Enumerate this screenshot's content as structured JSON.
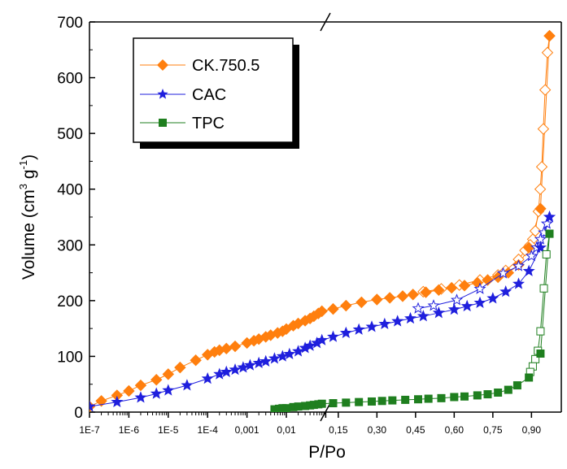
{
  "chart_data": {
    "type": "scatter",
    "title": "",
    "xlabel": "P/Po",
    "ylabel_main": "Volume (cm",
    "ylabel_sup1": "3",
    "ylabel_mid": " g",
    "ylabel_sup2": "-1",
    "ylabel_end": ")",
    "x_scale": "log axis (1E-7 to 0.1) joined by an axis break to a linear axis (0.1 to 1.0)",
    "x_tick_labels_log": [
      "1E-7",
      "1E-6",
      "1E-5",
      "1E-4",
      "0,001",
      "0,01"
    ],
    "x_tick_labels_lin": [
      "0,15",
      "0,30",
      "0,45",
      "0,60",
      "0,75",
      "0,90"
    ],
    "ylim": [
      0,
      700
    ],
    "y_ticks": [
      "0",
      "100",
      "200",
      "300",
      "400",
      "500",
      "600",
      "700"
    ],
    "grid": false,
    "legend_position": "top-left",
    "series": [
      {
        "name": "CK.750.5",
        "color": "#ff7f0e",
        "marker": "diamond",
        "adsorption": [
          [
            1e-07,
            10
          ],
          [
            2e-07,
            20
          ],
          [
            5e-07,
            30
          ],
          [
            1e-06,
            38
          ],
          [
            2e-06,
            48
          ],
          [
            5e-06,
            58
          ],
          [
            1e-05,
            68
          ],
          [
            2e-05,
            80
          ],
          [
            5e-05,
            93
          ],
          [
            0.0001,
            103
          ],
          [
            0.00015,
            108
          ],
          [
            0.0002,
            111
          ],
          [
            0.0003,
            114
          ],
          [
            0.0005,
            118
          ],
          [
            0.001,
            124
          ],
          [
            0.0015,
            128
          ],
          [
            0.002,
            131
          ],
          [
            0.003,
            135
          ],
          [
            0.004,
            138
          ],
          [
            0.006,
            142
          ],
          [
            0.008,
            145
          ],
          [
            0.01,
            149
          ],
          [
            0.015,
            155
          ],
          [
            0.02,
            159
          ],
          [
            0.03,
            164
          ],
          [
            0.04,
            168
          ],
          [
            0.05,
            172
          ],
          [
            0.065,
            177
          ],
          [
            0.08,
            181
          ],
          [
            0.13,
            185
          ],
          [
            0.18,
            191
          ],
          [
            0.24,
            197
          ],
          [
            0.3,
            202
          ],
          [
            0.35,
            205
          ],
          [
            0.4,
            208
          ],
          [
            0.44,
            211
          ],
          [
            0.49,
            215
          ],
          [
            0.54,
            219
          ],
          [
            0.59,
            223
          ],
          [
            0.64,
            227
          ],
          [
            0.69,
            232
          ],
          [
            0.73,
            237
          ],
          [
            0.77,
            242
          ],
          [
            0.81,
            250
          ],
          [
            0.85,
            264
          ],
          [
            0.89,
            295
          ],
          [
            0.935,
            365
          ],
          [
            0.97,
            675
          ]
        ],
        "desorption": [
          [
            0.97,
            675
          ],
          [
            0.962,
            645
          ],
          [
            0.953,
            578
          ],
          [
            0.946,
            508
          ],
          [
            0.94,
            440
          ],
          [
            0.934,
            400
          ],
          [
            0.927,
            360
          ],
          [
            0.915,
            325
          ],
          [
            0.905,
            310
          ],
          [
            0.895,
            300
          ],
          [
            0.875,
            290
          ],
          [
            0.85,
            274
          ],
          [
            0.8,
            254
          ],
          [
            0.77,
            246
          ],
          [
            0.7,
            237
          ],
          [
            0.62,
            228
          ],
          [
            0.55,
            221
          ],
          [
            0.48,
            216
          ]
        ]
      },
      {
        "name": "CAC",
        "color": "#1f1fdd",
        "marker": "star",
        "adsorption": [
          [
            1e-07,
            10
          ],
          [
            5e-07,
            18
          ],
          [
            2e-06,
            26
          ],
          [
            5e-06,
            33
          ],
          [
            1e-05,
            39
          ],
          [
            3e-05,
            48
          ],
          [
            0.0001,
            60
          ],
          [
            0.0002,
            68
          ],
          [
            0.0003,
            72
          ],
          [
            0.0005,
            76
          ],
          [
            0.0008,
            80
          ],
          [
            0.0012,
            84
          ],
          [
            0.002,
            88
          ],
          [
            0.003,
            91
          ],
          [
            0.005,
            96
          ],
          [
            0.008,
            100
          ],
          [
            0.012,
            104
          ],
          [
            0.02,
            109
          ],
          [
            0.03,
            115
          ],
          [
            0.04,
            119
          ],
          [
            0.06,
            124
          ],
          [
            0.08,
            129
          ],
          [
            0.13,
            135
          ],
          [
            0.18,
            142
          ],
          [
            0.23,
            148
          ],
          [
            0.28,
            153
          ],
          [
            0.33,
            158
          ],
          [
            0.38,
            163
          ],
          [
            0.43,
            168
          ],
          [
            0.48,
            172
          ],
          [
            0.54,
            178
          ],
          [
            0.6,
            184
          ],
          [
            0.65,
            190
          ],
          [
            0.7,
            196
          ],
          [
            0.75,
            204
          ],
          [
            0.8,
            216
          ],
          [
            0.85,
            230
          ],
          [
            0.89,
            253
          ],
          [
            0.935,
            295
          ],
          [
            0.97,
            350
          ]
        ],
        "desorption": [
          [
            0.97,
            350
          ],
          [
            0.96,
            338
          ],
          [
            0.948,
            322
          ],
          [
            0.935,
            310
          ],
          [
            0.92,
            295
          ],
          [
            0.9,
            280
          ],
          [
            0.85,
            262
          ],
          [
            0.79,
            249
          ],
          [
            0.7,
            221
          ],
          [
            0.61,
            201
          ],
          [
            0.52,
            191
          ],
          [
            0.46,
            186
          ]
        ]
      },
      {
        "name": "TPC",
        "color": "#1f7f1f",
        "marker": "square",
        "adsorption": [
          [
            0.005,
            5
          ],
          [
            0.0065,
            6
          ],
          [
            0.008,
            7
          ],
          [
            0.01,
            7
          ],
          [
            0.015,
            9
          ],
          [
            0.02,
            10
          ],
          [
            0.03,
            11
          ],
          [
            0.04,
            12
          ],
          [
            0.05,
            13
          ],
          [
            0.065,
            14
          ],
          [
            0.08,
            15
          ],
          [
            0.13,
            16
          ],
          [
            0.18,
            17
          ],
          [
            0.23,
            18
          ],
          [
            0.28,
            19
          ],
          [
            0.32,
            20
          ],
          [
            0.36,
            21
          ],
          [
            0.41,
            22
          ],
          [
            0.46,
            23
          ],
          [
            0.5,
            24
          ],
          [
            0.55,
            25
          ],
          [
            0.6,
            27
          ],
          [
            0.64,
            28
          ],
          [
            0.69,
            30
          ],
          [
            0.73,
            32
          ],
          [
            0.77,
            35
          ],
          [
            0.81,
            40
          ],
          [
            0.845,
            48
          ],
          [
            0.89,
            62
          ],
          [
            0.935,
            105
          ],
          [
            0.97,
            320
          ]
        ],
        "desorption": [
          [
            0.97,
            320
          ],
          [
            0.958,
            283
          ],
          [
            0.948,
            222
          ],
          [
            0.935,
            145
          ],
          [
            0.925,
            110
          ],
          [
            0.915,
            95
          ],
          [
            0.905,
            82
          ],
          [
            0.895,
            72
          ]
        ]
      }
    ]
  }
}
